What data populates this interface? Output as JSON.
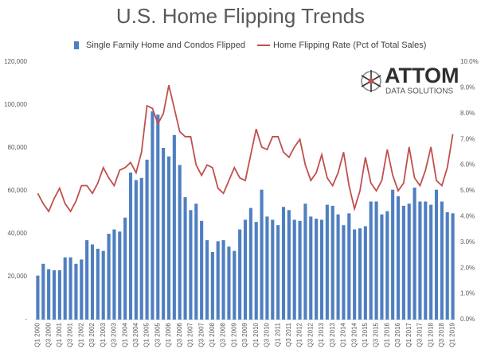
{
  "chart_data": {
    "type": "bar-line",
    "title": "U.S. Home Flipping Trends",
    "categories": [
      "Q1 2000",
      null,
      "Q3 2000",
      null,
      "Q1 2001",
      null,
      "Q3 2001",
      null,
      "Q1 2002",
      null,
      "Q3 2002",
      null,
      "Q1 2003",
      null,
      "Q3 2003",
      null,
      "Q1 2004",
      null,
      "Q3 2004",
      null,
      "Q1 2005",
      null,
      "Q3 2005",
      null,
      "Q1 2006",
      null,
      "Q3 2006",
      null,
      "Q1 2007",
      null,
      "Q3 2007",
      null,
      "Q1 2008",
      null,
      "Q3 2008",
      null,
      "Q1 2009",
      null,
      "Q3 2009",
      null,
      "Q1 2010",
      null,
      "Q3 2010",
      null,
      "Q1 2011",
      null,
      "Q3 2011",
      null,
      "Q1 2012",
      null,
      "Q3 2012",
      null,
      "Q1 2013",
      null,
      "Q3 2013",
      null,
      "Q1 2014",
      null,
      "Q3 2014",
      null,
      "Q1 2015",
      null,
      "Q3 2015",
      null,
      "Q1 2016",
      null,
      "Q3 2016",
      null,
      "Q1 2017",
      null,
      "Q3 2017",
      null,
      "Q1 2018",
      null,
      "Q3 2018",
      null,
      "Q1 2019"
    ],
    "series": [
      {
        "name": "Single Family Home and Condos Flipped",
        "color": "#4f7fc0",
        "axis": "y",
        "values": [
          20500,
          26000,
          23500,
          23000,
          23000,
          29000,
          29000,
          26000,
          28000,
          37000,
          35000,
          33000,
          32000,
          40000,
          42000,
          41000,
          47500,
          68500,
          65000,
          66000,
          74500,
          97000,
          95500,
          80000,
          76000,
          86000,
          72000,
          57000,
          51000,
          54000,
          46000,
          37000,
          31500,
          36500,
          37000,
          34000,
          32000,
          42000,
          46500,
          52000,
          45500,
          60500,
          48000,
          46500,
          44000,
          52500,
          51000,
          46500,
          46000,
          54000,
          48000,
          47000,
          46500,
          53500,
          53000,
          49000,
          44000,
          49500,
          42000,
          42500,
          43500,
          55000,
          55000,
          49000,
          50500,
          60500,
          57500,
          53000,
          54000,
          61500,
          55000,
          55000,
          53500,
          60500,
          55000,
          50000,
          49500
        ]
      },
      {
        "name": "Home Flipping Rate (Pct of Total Sales)",
        "color": "#c0504d",
        "axis": "y2",
        "values": [
          4.9,
          4.5,
          4.2,
          4.7,
          5.1,
          4.5,
          4.2,
          4.6,
          5.2,
          5.2,
          4.9,
          5.3,
          5.9,
          5.5,
          5.2,
          5.8,
          5.9,
          6.1,
          5.7,
          6.5,
          8.3,
          8.2,
          7.6,
          8.0,
          9.1,
          8.2,
          7.3,
          7.1,
          7.1,
          6.0,
          5.6,
          6.0,
          5.9,
          5.1,
          4.9,
          5.4,
          5.9,
          5.5,
          5.4,
          6.4,
          7.4,
          6.7,
          6.6,
          7.1,
          7.1,
          6.5,
          6.3,
          6.7,
          7.0,
          6.0,
          5.4,
          5.7,
          6.4,
          5.5,
          5.2,
          5.7,
          6.5,
          5.2,
          4.3,
          5.0,
          6.3,
          5.3,
          5.0,
          5.4,
          6.6,
          5.6,
          5.0,
          5.3,
          6.7,
          5.5,
          5.2,
          5.8,
          6.7,
          5.4,
          5.2,
          5.9,
          7.2
        ]
      }
    ],
    "ylim": [
      0,
      120000
    ],
    "yticks": [
      {
        "value": 0,
        "label": "-"
      },
      {
        "value": 20000,
        "label": "20,000"
      },
      {
        "value": 40000,
        "label": "40,000"
      },
      {
        "value": 60000,
        "label": "60,000"
      },
      {
        "value": 80000,
        "label": "80,000"
      },
      {
        "value": 100000,
        "label": "100,000"
      },
      {
        "value": 120000,
        "label": "120,000"
      }
    ],
    "y2lim": [
      0,
      10
    ],
    "y2ticks": [
      {
        "value": 0,
        "label": "0.0%"
      },
      {
        "value": 1,
        "label": "1.0%"
      },
      {
        "value": 2,
        "label": "2.0%"
      },
      {
        "value": 3,
        "label": "3.0%"
      },
      {
        "value": 4,
        "label": "4.0%"
      },
      {
        "value": 5,
        "label": "5.0%"
      },
      {
        "value": 6,
        "label": "6.0%"
      },
      {
        "value": 7,
        "label": "7.0%"
      },
      {
        "value": 8,
        "label": "8.0%"
      },
      {
        "value": 9,
        "label": "9.0%"
      },
      {
        "value": 10,
        "label": "10.0%"
      }
    ],
    "grid": false,
    "legend": "top"
  },
  "logo": {
    "name": "ATTOM",
    "tagline": "DATA SOLUTIONS"
  }
}
